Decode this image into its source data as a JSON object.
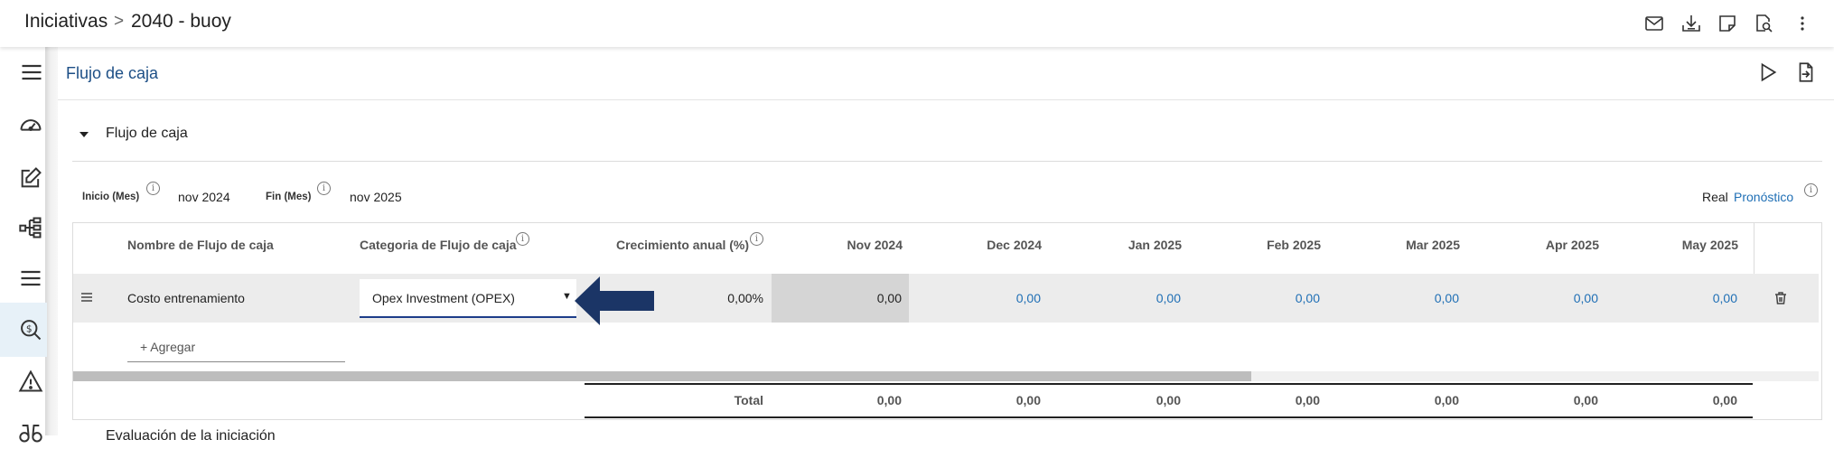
{
  "breadcrumb": {
    "parent": "Iniciativas",
    "separator": ">",
    "current": "2040 - buoy"
  },
  "header": {
    "title": "Flujo de caja"
  },
  "section": {
    "title": "Flujo de caja"
  },
  "period": {
    "start_label": "Inicio (Mes)",
    "start_value": "nov 2024",
    "end_label": "Fin (Mes)",
    "end_value": "nov 2025"
  },
  "toggle": {
    "real": "Real",
    "forecast": "Pronóstico"
  },
  "table": {
    "headers": {
      "name": "Nombre de Flujo de caja",
      "category": "Categoria de Flujo de caja",
      "growth": "Crecimiento anual (%)",
      "months": [
        "Nov 2024",
        "Dec 2024",
        "Jan 2025",
        "Feb 2025",
        "Mar 2025",
        "Apr 2025",
        "May 2025"
      ]
    },
    "row": {
      "name": "Costo entrenamiento",
      "category": "Opex Investment (OPEX)",
      "growth": "0,00%",
      "values": [
        "0,00",
        "0,00",
        "0,00",
        "0,00",
        "0,00",
        "0,00",
        "0,00"
      ]
    },
    "add_label": "+ Agregar",
    "total_label": "Total",
    "totals": [
      "0,00",
      "0,00",
      "0,00",
      "0,00",
      "0,00",
      "0,00",
      "0,00"
    ]
  },
  "next_section_partial": "Evaluación de la iniciación",
  "colors": {
    "accent": "#1f6fb5",
    "arrow": "#1b3566",
    "active_rail": "#e7f1f8"
  },
  "icons": {
    "top": [
      "mail-icon",
      "download-icon",
      "note-icon",
      "document-search-icon",
      "more-vertical-icon"
    ],
    "rail": [
      "speedometer-icon",
      "edit-icon",
      "hierarchy-icon",
      "list-icon",
      "search-dollar-icon",
      "warning-icon",
      "binoculars-icon"
    ]
  }
}
